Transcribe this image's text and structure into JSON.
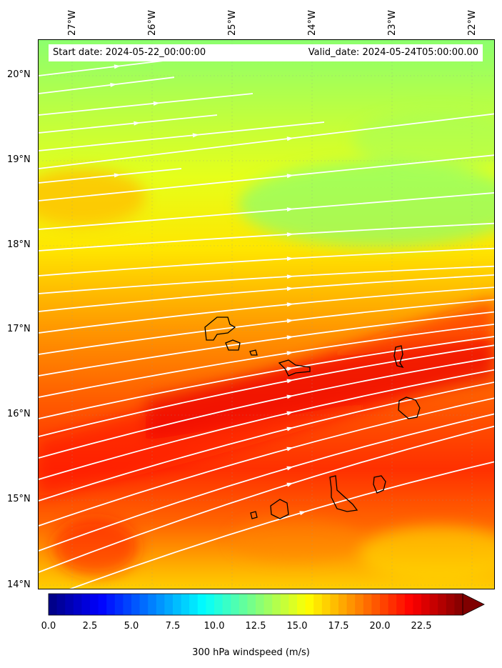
{
  "info": {
    "start_label": "Start date: 2024-05-22_00:00:00",
    "valid_label": "Valid_date: 2024-05-24T05:00:00.00"
  },
  "lon_labels": [
    "27°W",
    "26°W",
    "25°W",
    "24°W",
    "23°W",
    "22°W"
  ],
  "lat_labels": [
    "20°N",
    "19°N",
    "18°N",
    "17°N",
    "16°N",
    "15°N",
    "14°N"
  ],
  "colorbar": {
    "ticks": [
      "0.0",
      "2.5",
      "5.0",
      "7.5",
      "10.0",
      "12.5",
      "15.0",
      "17.5",
      "20.0",
      "22.5"
    ],
    "title": "300 hPa windspeed (m/s)",
    "range": [
      0,
      25
    ],
    "extend": "max",
    "colormap": "jet"
  },
  "map": {
    "lon_range": [
      -27.4,
      -21.7
    ],
    "lat_range": [
      13.95,
      20.45
    ],
    "field": "300 hPa windspeed",
    "streamline_color": "#ffffff",
    "coastline_color": "#000000",
    "gridlines": true
  }
}
